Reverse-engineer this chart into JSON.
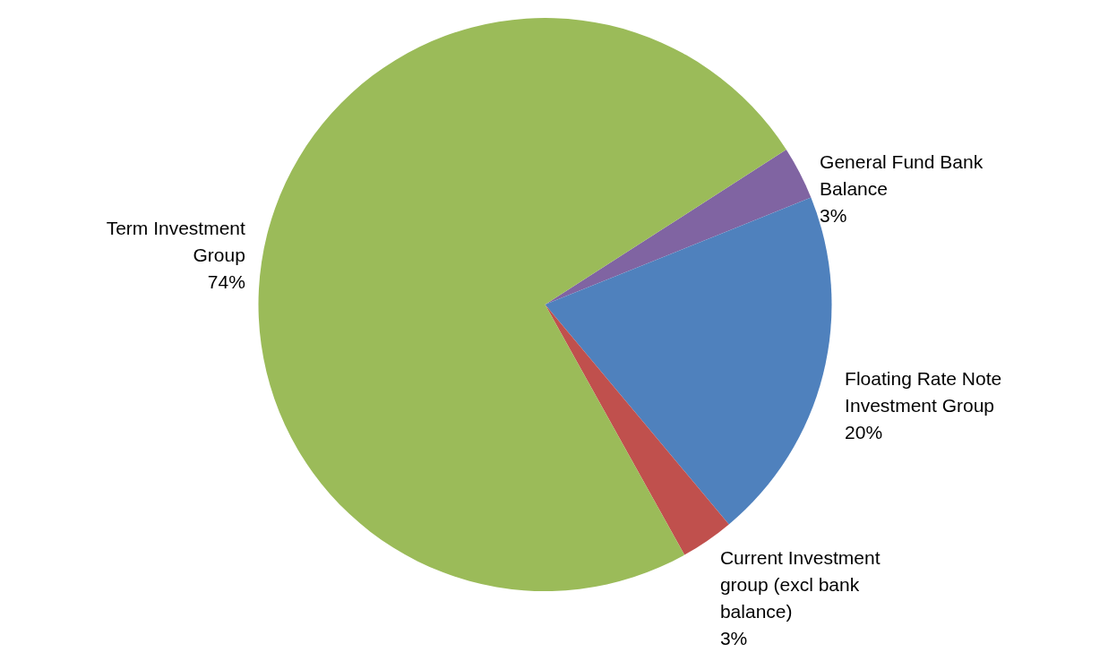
{
  "chart_data": {
    "type": "pie",
    "categories": [
      "General Fund Bank Balance",
      "Floating Rate Note Investment Group",
      "Current Investment group (excl bank balance)",
      "Term Investment Group"
    ],
    "values": [
      3,
      20,
      3,
      74
    ],
    "colors": [
      "#8064a2",
      "#4f81bd",
      "#c0504d",
      "#9bbb59"
    ],
    "value_labels": [
      "3%",
      "20%",
      "3%",
      "74%"
    ]
  }
}
